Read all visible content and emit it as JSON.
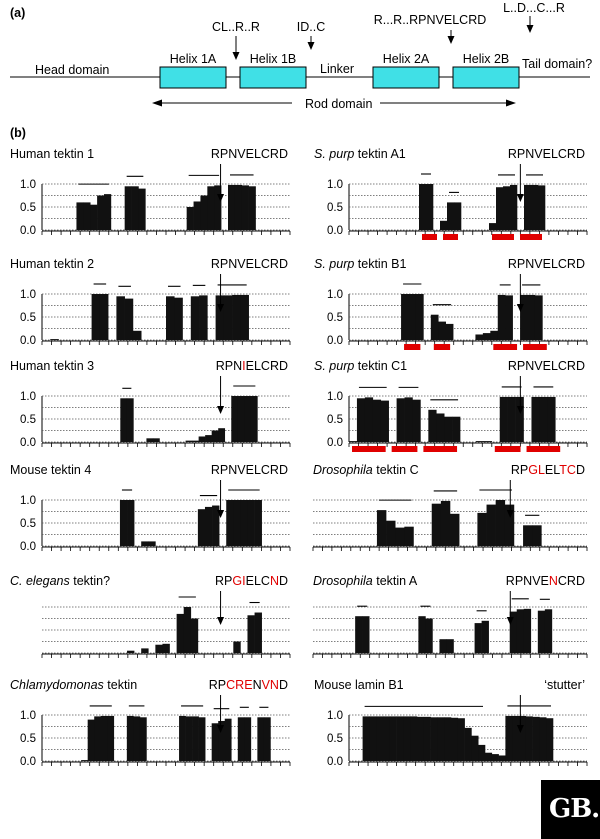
{
  "panel_a": {
    "label": "(a)",
    "head_domain": "Head domain",
    "tail_domain": "Tail domain?",
    "linker": "Linker",
    "rod_domain": "Rod domain",
    "helices": [
      "Helix 1A",
      "Helix 1B",
      "Helix 2A",
      "Helix 2B"
    ],
    "motifs": [
      "CL..R..R",
      "ID..C",
      "R...R..RPNVELCRD",
      "L..D...C...R"
    ],
    "box_color": "#40e0e6"
  },
  "panel_b": {
    "label": "(b)",
    "highlight_color": "#e00000",
    "stutter_label": "‘stutter’"
  },
  "logo": {
    "text": "GB.c"
  },
  "chart_data": [
    {
      "type": "bar",
      "title": "Human tektin 1",
      "motif": [
        [
          "RPNVELCRD",
          false
        ]
      ],
      "ylim": [
        0,
        1
      ],
      "yticks": [
        "0.0",
        "0.5",
        "1.0"
      ],
      "values": [
        0,
        0,
        0,
        0,
        0,
        0.6,
        0.6,
        0.55,
        0.75,
        0.78,
        0,
        0,
        0.95,
        0.95,
        0.9,
        0,
        0,
        0,
        0,
        0,
        0,
        0.5,
        0.62,
        0.75,
        0.95,
        0.97,
        0,
        0.98,
        0.98,
        0.97,
        0.95,
        0,
        0,
        0,
        0,
        0
      ]
    },
    {
      "type": "bar",
      "title": "Human tektin 2",
      "motif": [
        [
          "RPNVELCRD",
          false
        ]
      ],
      "ylim": [
        0,
        1
      ],
      "yticks": [
        "0.0",
        "0.5",
        "1.0"
      ],
      "values": [
        0,
        0.02,
        0,
        0,
        0,
        0,
        1,
        1,
        0,
        0.95,
        0.9,
        0.2,
        0,
        0,
        0,
        0.95,
        0.92,
        0,
        0.95,
        0.97,
        0,
        0.97,
        0.97,
        0.98,
        0.98,
        0,
        0,
        0,
        0,
        0
      ]
    },
    {
      "type": "bar",
      "title": "Human tektin 3",
      "motif": [
        [
          "RPN",
          false
        ],
        [
          "I",
          true
        ],
        [
          "ELCRD",
          false
        ]
      ],
      "ylim": [
        0,
        1
      ],
      "yticks": [
        "0.0",
        "0.5",
        "1.0"
      ],
      "values": [
        0,
        0,
        0,
        0,
        0,
        0,
        0,
        0,
        0,
        0,
        0,
        0,
        0.95,
        0.95,
        0,
        0,
        0.08,
        0.08,
        0,
        0,
        0,
        0,
        0.03,
        0.03,
        0.12,
        0.15,
        0.25,
        0.3,
        0,
        1,
        1,
        1,
        1,
        0,
        0,
        0,
        0,
        0
      ]
    },
    {
      "type": "bar",
      "title": "Mouse tektin 4",
      "motif": [
        [
          "RPNVELCRD",
          false
        ]
      ],
      "ylim": [
        0,
        1
      ],
      "yticks": [
        "0.0",
        "0.5",
        "1.0"
      ],
      "values": [
        0,
        0,
        0,
        0,
        0,
        0,
        0,
        0,
        0,
        0,
        0,
        1,
        1,
        0,
        0.1,
        0.1,
        0,
        0,
        0,
        0,
        0,
        0,
        0.8,
        0.85,
        0.88,
        0,
        1,
        1,
        1,
        1,
        1,
        0,
        0,
        0,
        0
      ]
    },
    {
      "type": "bar",
      "title": "C. elegans tektin?",
      "italic_words": 2,
      "motif": [
        [
          "RP",
          false
        ],
        [
          "GI",
          true
        ],
        [
          "ELC",
          false
        ],
        [
          "N",
          true
        ],
        [
          "D",
          false
        ]
      ],
      "ylim": [
        0,
        1
      ],
      "yticks": [],
      "values": [
        0,
        0,
        0,
        0,
        0,
        0,
        0,
        0,
        0,
        0,
        0,
        0,
        0.05,
        0,
        0.1,
        0,
        0.18,
        0.2,
        0,
        0.85,
        1,
        0.75,
        0,
        0,
        0,
        0,
        0,
        0.25,
        0,
        0.82,
        0.88,
        0,
        0,
        0,
        0
      ]
    },
    {
      "type": "bar",
      "title": "Chlamydomonas tektin",
      "italic_words": 1,
      "motif": [
        [
          "RP",
          false
        ],
        [
          "CRE",
          true
        ],
        [
          "N",
          false
        ],
        [
          "VN",
          true
        ],
        [
          "D",
          false
        ]
      ],
      "ylim": [
        0,
        1
      ],
      "yticks": [
        "0.0",
        "0.5",
        "1.0"
      ],
      "values": [
        0,
        0,
        0,
        0,
        0,
        0,
        0.02,
        0.9,
        0.97,
        0.98,
        0.98,
        0,
        0,
        0.98,
        0.97,
        0.95,
        0,
        0,
        0,
        0,
        0,
        0.98,
        0.97,
        0.97,
        0.95,
        0,
        0.82,
        0.87,
        0.92,
        0,
        0.95,
        0.95,
        0,
        0.95,
        0.95,
        0,
        0,
        0
      ]
    },
    {
      "type": "bar",
      "title": "S. purp tektin A1",
      "italic_words": 2,
      "motif": [
        [
          "RPNVELCRD",
          false
        ]
      ],
      "ylim": [
        0,
        1
      ],
      "yticks": [
        "0.0",
        "0.5",
        "1.0"
      ],
      "values": [
        0,
        0,
        0,
        0,
        0,
        0,
        0,
        0,
        0,
        0,
        1,
        1,
        0,
        0.2,
        0.6,
        0.6,
        0,
        0,
        0,
        0,
        0.15,
        0.93,
        0.95,
        0.98,
        0,
        0.98,
        0.98,
        0.97,
        0,
        0,
        0,
        0,
        0,
        0
      ],
      "red_segments": [
        [
          10,
          13
        ],
        [
          13,
          16
        ],
        [
          20,
          24
        ],
        [
          24,
          28
        ]
      ]
    },
    {
      "type": "bar",
      "title": "S. purp tektin B1",
      "italic_words": 2,
      "motif": [
        [
          "RPNVELCRD",
          false
        ]
      ],
      "ylim": [
        0,
        1
      ],
      "yticks": [
        "0.0",
        "0.5",
        "1.0"
      ],
      "values": [
        0,
        0,
        0,
        0,
        0,
        0,
        0,
        1,
        1,
        1,
        0,
        0.55,
        0.4,
        0.35,
        0,
        0,
        0,
        0.12,
        0.15,
        0.2,
        0.98,
        0.97,
        0,
        0.98,
        0.98,
        0.97,
        0,
        0,
        0,
        0,
        0,
        0
      ],
      "red_segments": [
        [
          7,
          10
        ],
        [
          11,
          14
        ],
        [
          19,
          23
        ],
        [
          23,
          27
        ]
      ]
    },
    {
      "type": "bar",
      "title": "S. purp tektin C1",
      "italic_words": 2,
      "motif": [
        [
          "RPNVELCRD",
          false
        ]
      ],
      "ylim": [
        0,
        1
      ],
      "yticks": [
        "0.0",
        "0.5",
        "1.0"
      ],
      "values": [
        0.02,
        0.95,
        0.97,
        0.92,
        0.9,
        0,
        0.95,
        0.97,
        0.92,
        0,
        0.7,
        0.62,
        0.55,
        0.55,
        0,
        0,
        0.02,
        0.02,
        0,
        0.98,
        0.98,
        0.98,
        0,
        0.98,
        0.98,
        0.98,
        0,
        0,
        0,
        0
      ],
      "red_segments": [
        [
          0,
          5
        ],
        [
          5,
          9
        ],
        [
          9,
          14
        ],
        [
          18,
          22
        ],
        [
          22,
          27
        ]
      ]
    },
    {
      "type": "bar",
      "title": "Drosophila tektin C",
      "italic_words": 1,
      "motif": [
        [
          "RP",
          false
        ],
        [
          "GL",
          true
        ],
        [
          "EL",
          false
        ],
        [
          "TC",
          true
        ],
        [
          "D",
          false
        ]
      ],
      "ylim": [
        0,
        1
      ],
      "yticks": [],
      "values": [
        0,
        0,
        0,
        0,
        0,
        0,
        0,
        0.78,
        0.55,
        0.4,
        0.42,
        0,
        0,
        0.92,
        0.98,
        0.7,
        0,
        0,
        0.72,
        0.9,
        1,
        0.9,
        0,
        0.45,
        0.45,
        0,
        0,
        0,
        0,
        0
      ]
    },
    {
      "type": "bar",
      "title": "Drosophila tektin A",
      "italic_words": 1,
      "motif": [
        [
          "RPNVE",
          false
        ],
        [
          "N",
          true
        ],
        [
          "CRD",
          false
        ]
      ],
      "ylim": [
        0,
        1
      ],
      "yticks": [],
      "values": [
        0,
        0,
        0,
        0,
        0,
        0,
        0.8,
        0.8,
        0,
        0,
        0,
        0,
        0,
        0,
        0,
        0.8,
        0.75,
        0,
        0.3,
        0.3,
        0,
        0,
        0,
        0.65,
        0.7,
        0,
        0,
        0,
        0.9,
        0.95,
        0.96,
        0,
        0.92,
        0.95,
        0,
        0,
        0,
        0,
        0
      ]
    },
    {
      "type": "bar",
      "title": "Mouse lamin B1",
      "motif": [
        [
          "‘stutter’",
          false
        ]
      ],
      "ylim": [
        0,
        1
      ],
      "yticks": [
        "0.0",
        "0.5",
        "1.0"
      ],
      "values": [
        0,
        0,
        0.97,
        0.97,
        0.97,
        0.97,
        0.97,
        0.97,
        0.97,
        0.97,
        0.96,
        0.96,
        0.95,
        0.95,
        0.95,
        0.94,
        0.93,
        0.72,
        0.55,
        0.35,
        0.18,
        0.15,
        0.12,
        0.98,
        0.98,
        0.98,
        0.97,
        0.96,
        0.95,
        0.93,
        0,
        0,
        0,
        0,
        0
      ]
    }
  ]
}
